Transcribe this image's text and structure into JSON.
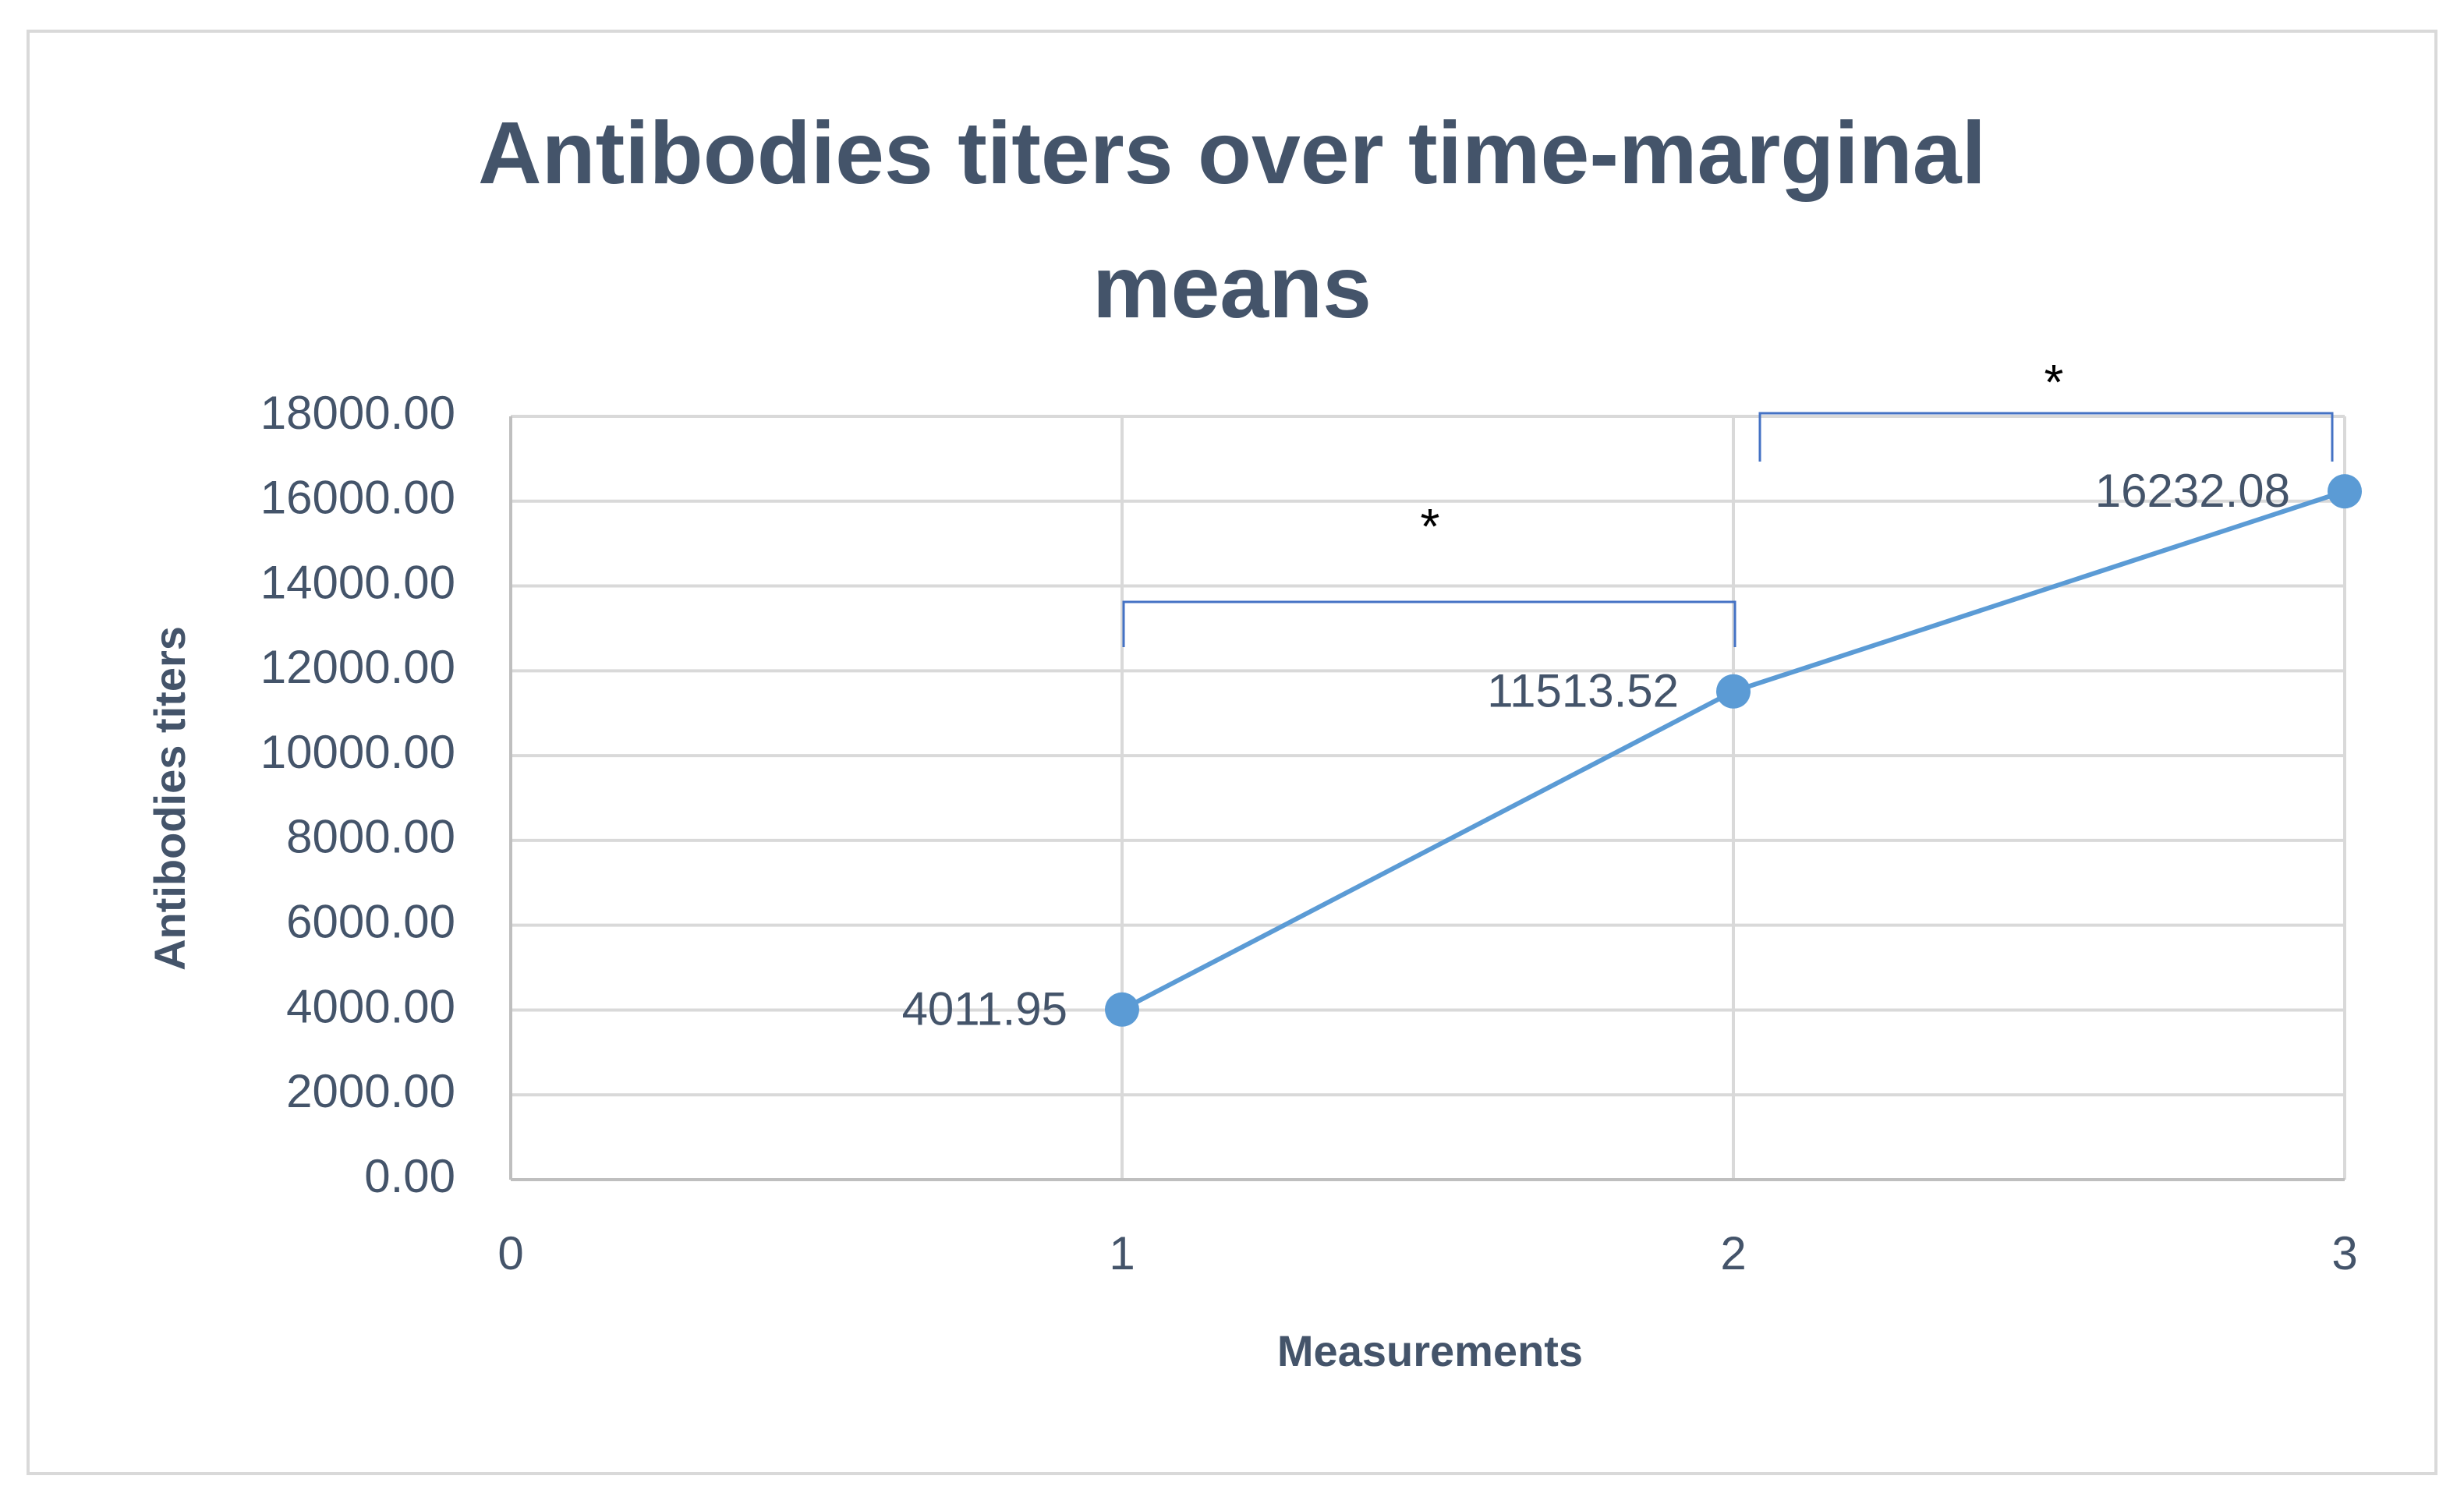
{
  "chart_data": {
    "type": "line",
    "title": "Antibodies titers over time-marginal means",
    "x_label": "Measurements",
    "y_label": "Antibodies titers",
    "x": [
      1,
      2,
      3
    ],
    "series": [
      {
        "name": "Antibodies titers",
        "color": "#5b9bd5",
        "values": [
          4011.95,
          11513.52,
          16232.08
        ],
        "value_labels": [
          "4011.95",
          "11513.52",
          "16232.08"
        ]
      }
    ],
    "xlim": [
      0,
      3
    ],
    "xticks": [
      0,
      1,
      2,
      3
    ],
    "ylim": [
      0,
      18000
    ],
    "yticks": [
      {
        "value": 0,
        "label": "0.00"
      },
      {
        "value": 2000,
        "label": "2000.00"
      },
      {
        "value": 4000,
        "label": "4000.00"
      },
      {
        "value": 6000,
        "label": "6000.00"
      },
      {
        "value": 8000,
        "label": "8000.00"
      },
      {
        "value": 10000,
        "label": "10000.00"
      },
      {
        "value": 12000,
        "label": "12000.00"
      },
      {
        "value": 14000,
        "label": "14000.00"
      },
      {
        "value": 16000,
        "label": "16000.00"
      },
      {
        "value": 18000,
        "label": "18000.00"
      }
    ],
    "grid": true,
    "annotations": [
      "*",
      "*"
    ]
  }
}
